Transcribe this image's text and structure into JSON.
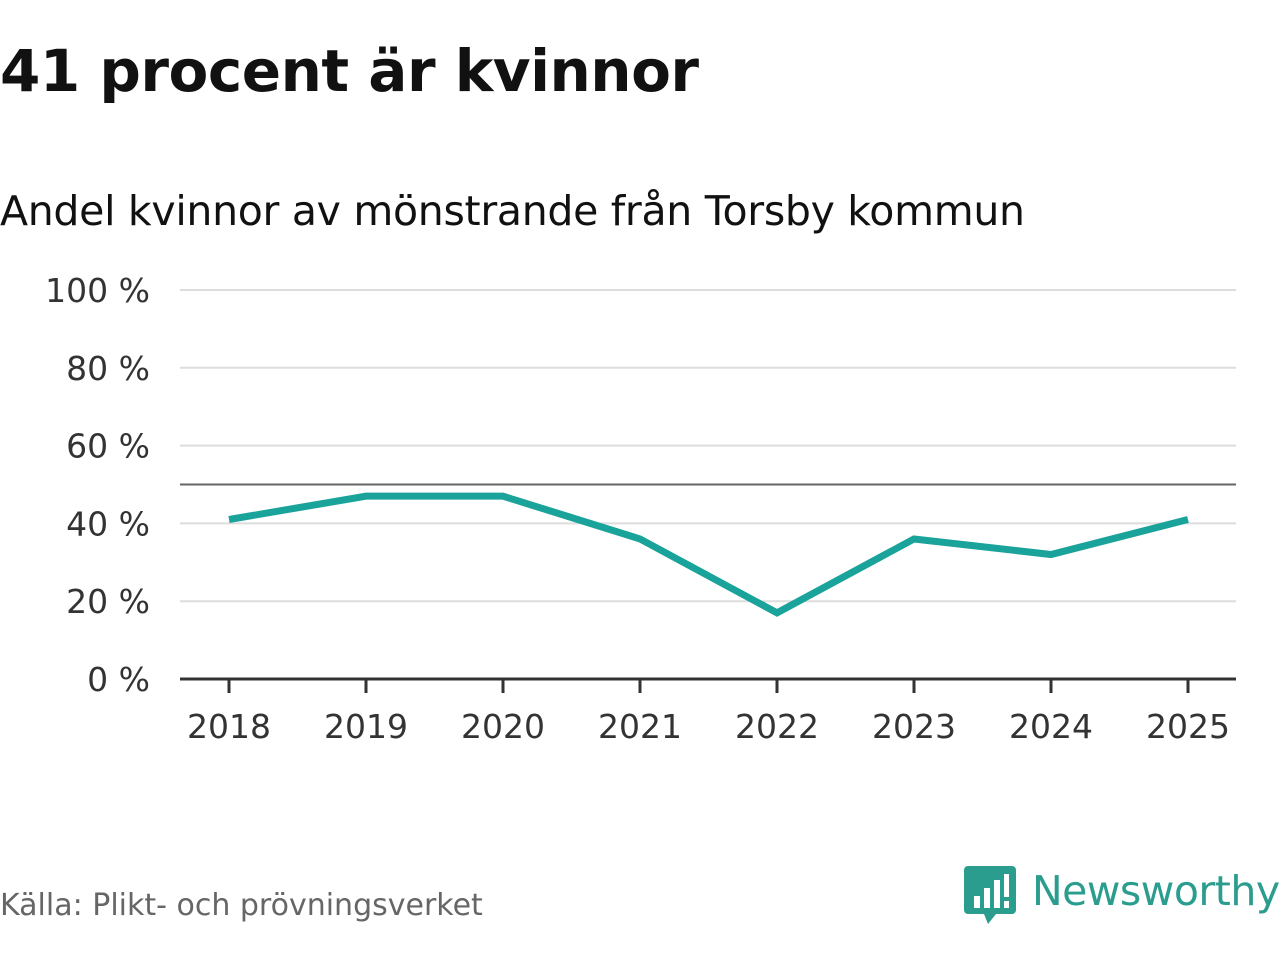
{
  "title": "41 procent är kvinnor",
  "subtitle": "Andel kvinnor av mönstrande från Torsby kommun",
  "source": "Källa: Plikt- och prövningsverket",
  "brand": {
    "name": "Newsworthy",
    "icon": "newsworthy-logo-icon",
    "color": "#2a9d8f"
  },
  "chart_data": {
    "type": "line",
    "x": [
      "2018",
      "2019",
      "2020",
      "2021",
      "2022",
      "2023",
      "2024",
      "2025"
    ],
    "series": [
      {
        "values": [
          41,
          47,
          47,
          36,
          17,
          36,
          32,
          41
        ],
        "color": "#1aa39a"
      }
    ],
    "reference_line": 50,
    "ylim": [
      0,
      100
    ],
    "yticks": [
      0,
      20,
      40,
      60,
      80,
      100
    ],
    "ytick_labels": [
      "0 %",
      "20 %",
      "40 %",
      "60 %",
      "80 %",
      "100 %"
    ],
    "xlabel": "",
    "ylabel": "",
    "grid": true,
    "legend": "none"
  }
}
